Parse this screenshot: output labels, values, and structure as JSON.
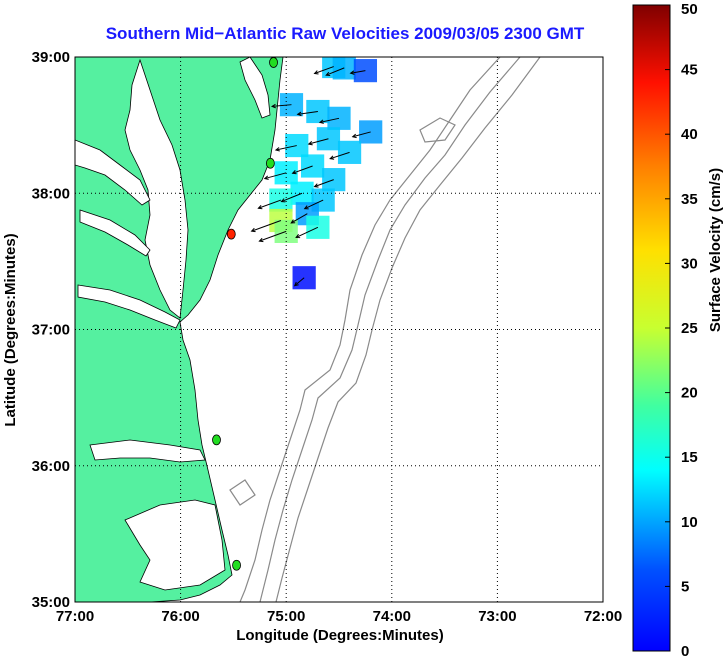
{
  "chart_data": {
    "type": "map-vector-field",
    "title": "Southern Mid−Atlantic Raw Velocities 2009/03/05 2300 GMT",
    "xlabel": "Longitude (Degrees:Minutes)",
    "ylabel": "Latitude (Degrees:Minutes)",
    "xlim": [
      -77,
      -72
    ],
    "ylim": [
      35,
      39
    ],
    "x_ticks": [
      {
        "value": -77,
        "label": "77:00"
      },
      {
        "value": -76,
        "label": "76:00"
      },
      {
        "value": -75,
        "label": "75:00"
      },
      {
        "value": -74,
        "label": "74:00"
      },
      {
        "value": -73,
        "label": "73:00"
      },
      {
        "value": -72,
        "label": "72:00"
      }
    ],
    "y_ticks": [
      {
        "value": 39,
        "label": "39:00"
      },
      {
        "value": 38,
        "label": "38:00"
      },
      {
        "value": 37,
        "label": "37:00"
      },
      {
        "value": 36,
        "label": "36:00"
      },
      {
        "value": 35,
        "label": "35:00"
      }
    ],
    "grid": "dotted",
    "colorbar": {
      "label": "Surface Velocity (cm/s)",
      "range": [
        0,
        50
      ],
      "ticks": [
        0,
        5,
        10,
        15,
        20,
        25,
        30,
        35,
        40,
        45,
        50
      ],
      "colormap": "jet"
    },
    "colors": {
      "land": "#55f0a0",
      "title": "#1a1aff",
      "station_active": "#22dd22",
      "station_alert": "#ff2200",
      "bathymetry": "#8a8a8a"
    },
    "stations": [
      {
        "lon": -75.12,
        "lat": 38.96,
        "status": "active"
      },
      {
        "lon": -75.15,
        "lat": 38.22,
        "status": "active"
      },
      {
        "lon": -75.52,
        "lat": 37.7,
        "status": "alert"
      },
      {
        "lon": -75.66,
        "lat": 36.19,
        "status": "active"
      },
      {
        "lon": -75.47,
        "lat": 35.27,
        "status": "active"
      }
    ],
    "vector_field": {
      "description_units": "velocity in cm/s; direction in degrees clockwise from north",
      "dominant_direction_deg": 255,
      "cells": [
        {
          "lon": -74.55,
          "lat": 38.93,
          "speed": 16,
          "dir": 250
        },
        {
          "lon": -74.45,
          "lat": 38.92,
          "speed": 15,
          "dir": 248
        },
        {
          "lon": -74.25,
          "lat": 38.9,
          "speed": 10,
          "dir": 260
        },
        {
          "lon": -74.95,
          "lat": 38.65,
          "speed": 15,
          "dir": 265
        },
        {
          "lon": -74.7,
          "lat": 38.6,
          "speed": 16,
          "dir": 262
        },
        {
          "lon": -74.5,
          "lat": 38.55,
          "speed": 15,
          "dir": 258
        },
        {
          "lon": -74.2,
          "lat": 38.45,
          "speed": 14,
          "dir": 255
        },
        {
          "lon": -74.6,
          "lat": 38.4,
          "speed": 16,
          "dir": 255
        },
        {
          "lon": -74.9,
          "lat": 38.35,
          "speed": 17,
          "dir": 258
        },
        {
          "lon": -74.4,
          "lat": 38.3,
          "speed": 16,
          "dir": 252
        },
        {
          "lon": -74.75,
          "lat": 38.2,
          "speed": 17,
          "dir": 250
        },
        {
          "lon": -75.0,
          "lat": 38.15,
          "speed": 18,
          "dir": 255
        },
        {
          "lon": -74.55,
          "lat": 38.1,
          "speed": 16,
          "dir": 250
        },
        {
          "lon": -74.85,
          "lat": 38.0,
          "speed": 18,
          "dir": 248
        },
        {
          "lon": -75.05,
          "lat": 37.95,
          "speed": 20,
          "dir": 250
        },
        {
          "lon": -74.65,
          "lat": 37.95,
          "speed": 16,
          "dir": 245
        },
        {
          "lon": -74.8,
          "lat": 37.85,
          "speed": 14,
          "dir": 240
        },
        {
          "lon": -75.05,
          "lat": 37.8,
          "speed": 28,
          "dir": 250
        },
        {
          "lon": -75.0,
          "lat": 37.72,
          "speed": 25,
          "dir": 250
        },
        {
          "lon": -74.7,
          "lat": 37.75,
          "speed": 20,
          "dir": 245
        },
        {
          "lon": -74.83,
          "lat": 37.38,
          "speed": 7,
          "dir": 230
        }
      ]
    }
  }
}
